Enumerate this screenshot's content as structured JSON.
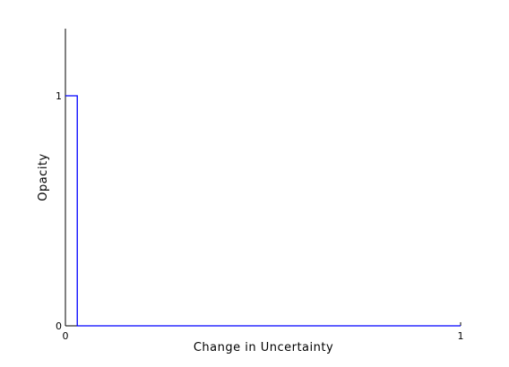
{
  "chart_data": {
    "type": "line",
    "xlabel": "Change in Uncertainty",
    "ylabel": "Opacity",
    "xlim": [
      0,
      1
    ],
    "ylim": [
      0,
      1.3
    ],
    "xticks": [
      {
        "value": 0,
        "label": "0"
      },
      {
        "value": 1,
        "label": "1"
      }
    ],
    "yticks": [
      {
        "value": 0,
        "label": "0"
      },
      {
        "value": 1,
        "label": "1"
      }
    ],
    "grid": false,
    "series": [
      {
        "color": "#0000ff",
        "points": [
          [
            0,
            1
          ],
          [
            0.03,
            1
          ],
          [
            0.03,
            0
          ],
          [
            1,
            0
          ]
        ]
      }
    ]
  }
}
